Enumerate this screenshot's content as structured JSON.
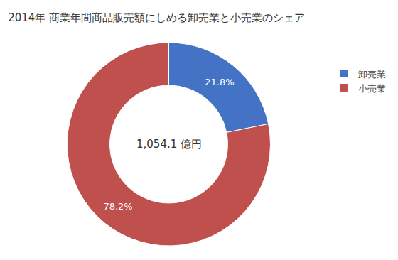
{
  "chart_data": {
    "type": "donut",
    "title": "2014年 商業年間商品販売額にしめる卸売業と小売業のシェア",
    "categories": [
      "卸売業",
      "小売業"
    ],
    "values": [
      21.8,
      78.2
    ],
    "value_labels": [
      "21.8%",
      "78.2%"
    ],
    "colors": [
      "#4472C4",
      "#C0504D"
    ],
    "annotations": [
      "1,054.1 億円"
    ],
    "data_labels": true,
    "legend": "right"
  }
}
